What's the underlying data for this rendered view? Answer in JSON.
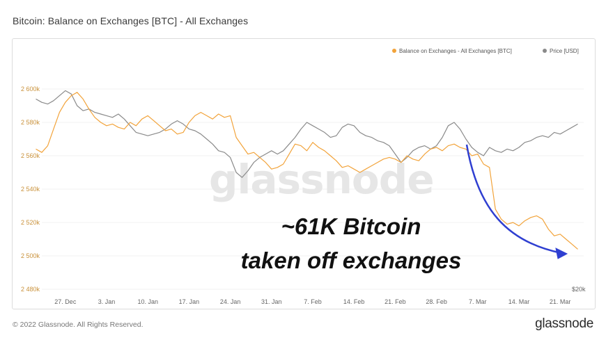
{
  "header": {
    "title": "Bitcoin: Balance on Exchanges [BTC] - All Exchanges"
  },
  "footer": {
    "copyright": "© 2022 Glassnode. All Rights Reserved.",
    "brand": "glassnode"
  },
  "chart_data": {
    "type": "line",
    "title": "Bitcoin: Balance on Exchanges [BTC] - All Exchanges",
    "watermark": "glassnode",
    "x_tick_labels": [
      "27. Dec",
      "3. Jan",
      "10. Jan",
      "17. Jan",
      "24. Jan",
      "31. Jan",
      "7. Feb",
      "14. Feb",
      "21. Feb",
      "28. Feb",
      "7. Mar",
      "14. Mar",
      "21. Mar"
    ],
    "y_left": {
      "ticks": [
        2480000,
        2500000,
        2520000,
        2540000,
        2560000,
        2580000,
        2600000
      ],
      "tick_labels": [
        "2 480k",
        "2 500k",
        "2 520k",
        "2 540k",
        "2 560k",
        "2 580k",
        "2 600k"
      ],
      "range": [
        2480000,
        2605000
      ]
    },
    "y_right": {
      "label": "$20k"
    },
    "x_range": [
      0,
      92
    ],
    "legend": {
      "position": "top-right"
    },
    "series": [
      {
        "name": "Balance on Exchanges - All Exchanges [BTC]",
        "axis": "left",
        "color": "#f2a33a",
        "points": [
          [
            -1,
            2564000
          ],
          [
            0,
            2562000
          ],
          [
            1,
            2566000
          ],
          [
            2,
            2576000
          ],
          [
            3,
            2586000
          ],
          [
            4,
            2592000
          ],
          [
            5,
            2596000
          ],
          [
            6,
            2598000
          ],
          [
            7,
            2594000
          ],
          [
            8,
            2588000
          ],
          [
            9,
            2583000
          ],
          [
            10,
            2580000
          ],
          [
            11,
            2578000
          ],
          [
            12,
            2579000
          ],
          [
            13,
            2577000
          ],
          [
            14,
            2576000
          ],
          [
            15,
            2580000
          ],
          [
            16,
            2578000
          ],
          [
            17,
            2582000
          ],
          [
            18,
            2584000
          ],
          [
            19,
            2581000
          ],
          [
            20,
            2578000
          ],
          [
            21,
            2575000
          ],
          [
            22,
            2576000
          ],
          [
            23,
            2573000
          ],
          [
            24,
            2574000
          ],
          [
            25,
            2580000
          ],
          [
            26,
            2584000
          ],
          [
            27,
            2586000
          ],
          [
            28,
            2584000
          ],
          [
            29,
            2582000
          ],
          [
            30,
            2585000
          ],
          [
            31,
            2583000
          ],
          [
            32,
            2584000
          ],
          [
            33,
            2571000
          ],
          [
            34,
            2566000
          ],
          [
            35,
            2561000
          ],
          [
            36,
            2562000
          ],
          [
            37,
            2559000
          ],
          [
            38,
            2556000
          ],
          [
            39,
            2552000
          ],
          [
            40,
            2553000
          ],
          [
            41,
            2555000
          ],
          [
            42,
            2561000
          ],
          [
            43,
            2567000
          ],
          [
            44,
            2566000
          ],
          [
            45,
            2563000
          ],
          [
            46,
            2568000
          ],
          [
            47,
            2565000
          ],
          [
            48,
            2563000
          ],
          [
            49,
            2560000
          ],
          [
            50,
            2557000
          ],
          [
            51,
            2553000
          ],
          [
            52,
            2554000
          ],
          [
            53,
            2552000
          ],
          [
            54,
            2550000
          ],
          [
            55,
            2552000
          ],
          [
            56,
            2554000
          ],
          [
            57,
            2556000
          ],
          [
            58,
            2558000
          ],
          [
            59,
            2559000
          ],
          [
            60,
            2558000
          ],
          [
            61,
            2556000
          ],
          [
            62,
            2560000
          ],
          [
            63,
            2558000
          ],
          [
            64,
            2557000
          ],
          [
            65,
            2561000
          ],
          [
            66,
            2564000
          ],
          [
            67,
            2565000
          ],
          [
            68,
            2563000
          ],
          [
            69,
            2566000
          ],
          [
            70,
            2567000
          ],
          [
            71,
            2565000
          ],
          [
            72,
            2564000
          ],
          [
            73,
            2560000
          ],
          [
            74,
            2561000
          ],
          [
            75,
            2555000
          ],
          [
            76,
            2553000
          ],
          [
            77,
            2528000
          ],
          [
            78,
            2522000
          ],
          [
            79,
            2519000
          ],
          [
            80,
            2520000
          ],
          [
            81,
            2518000
          ],
          [
            82,
            2521000
          ],
          [
            83,
            2523000
          ],
          [
            84,
            2524000
          ],
          [
            85,
            2522000
          ],
          [
            86,
            2516000
          ],
          [
            87,
            2512000
          ],
          [
            88,
            2513000
          ],
          [
            89,
            2510000
          ],
          [
            90,
            2507000
          ],
          [
            91,
            2504000
          ]
        ]
      },
      {
        "name": "Price [USD]",
        "axis": "right",
        "color": "#8a8a8a",
        "points": [
          [
            -1,
            2594000
          ],
          [
            0,
            2592000
          ],
          [
            1,
            2591000
          ],
          [
            2,
            2593000
          ],
          [
            3,
            2596000
          ],
          [
            4,
            2599000
          ],
          [
            5,
            2597000
          ],
          [
            6,
            2590000
          ],
          [
            7,
            2587000
          ],
          [
            8,
            2588000
          ],
          [
            9,
            2586000
          ],
          [
            10,
            2585000
          ],
          [
            11,
            2584000
          ],
          [
            12,
            2583000
          ],
          [
            13,
            2585000
          ],
          [
            14,
            2582000
          ],
          [
            15,
            2578000
          ],
          [
            16,
            2574000
          ],
          [
            17,
            2573000
          ],
          [
            18,
            2572000
          ],
          [
            19,
            2573000
          ],
          [
            20,
            2574000
          ],
          [
            21,
            2576000
          ],
          [
            22,
            2579000
          ],
          [
            23,
            2581000
          ],
          [
            24,
            2579000
          ],
          [
            25,
            2576000
          ],
          [
            26,
            2575000
          ],
          [
            27,
            2573000
          ],
          [
            28,
            2570000
          ],
          [
            29,
            2567000
          ],
          [
            30,
            2563000
          ],
          [
            31,
            2562000
          ],
          [
            32,
            2559000
          ],
          [
            33,
            2550000
          ],
          [
            34,
            2547000
          ],
          [
            35,
            2551000
          ],
          [
            36,
            2556000
          ],
          [
            37,
            2559000
          ],
          [
            38,
            2561000
          ],
          [
            39,
            2563000
          ],
          [
            40,
            2561000
          ],
          [
            41,
            2563000
          ],
          [
            42,
            2567000
          ],
          [
            43,
            2571000
          ],
          [
            44,
            2576000
          ],
          [
            45,
            2580000
          ],
          [
            46,
            2578000
          ],
          [
            47,
            2576000
          ],
          [
            48,
            2574000
          ],
          [
            49,
            2571000
          ],
          [
            50,
            2572000
          ],
          [
            51,
            2577000
          ],
          [
            52,
            2579000
          ],
          [
            53,
            2578000
          ],
          [
            54,
            2574000
          ],
          [
            55,
            2572000
          ],
          [
            56,
            2571000
          ],
          [
            57,
            2569000
          ],
          [
            58,
            2568000
          ],
          [
            59,
            2566000
          ],
          [
            60,
            2561000
          ],
          [
            61,
            2556000
          ],
          [
            62,
            2559000
          ],
          [
            63,
            2563000
          ],
          [
            64,
            2565000
          ],
          [
            65,
            2566000
          ],
          [
            66,
            2564000
          ],
          [
            67,
            2566000
          ],
          [
            68,
            2571000
          ],
          [
            69,
            2578000
          ],
          [
            70,
            2580000
          ],
          [
            71,
            2576000
          ],
          [
            72,
            2570000
          ],
          [
            73,
            2565000
          ],
          [
            74,
            2562000
          ],
          [
            75,
            2560000
          ],
          [
            76,
            2565000
          ],
          [
            77,
            2563000
          ],
          [
            78,
            2562000
          ],
          [
            79,
            2564000
          ],
          [
            80,
            2563000
          ],
          [
            81,
            2565000
          ],
          [
            82,
            2568000
          ],
          [
            83,
            2569000
          ],
          [
            84,
            2571000
          ],
          [
            85,
            2572000
          ],
          [
            86,
            2571000
          ],
          [
            87,
            2574000
          ],
          [
            88,
            2573000
          ],
          [
            89,
            2575000
          ],
          [
            90,
            2577000
          ],
          [
            91,
            2579000
          ]
        ]
      }
    ],
    "annotation": {
      "line1": "~61K Bitcoin",
      "line2": "taken off exchanges",
      "arrow_color": "#2f3fd1"
    }
  }
}
